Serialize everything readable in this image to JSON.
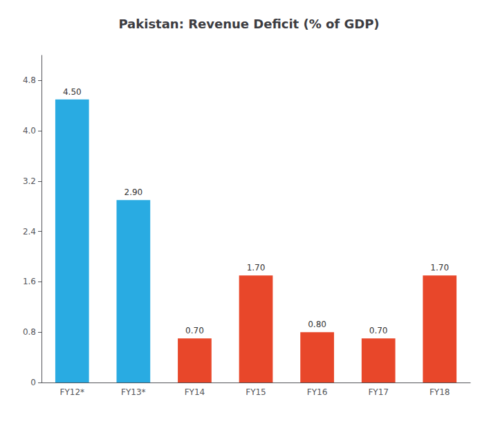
{
  "chart_data": {
    "type": "bar",
    "title": "Pakistan: Revenue Deficit (% of GDP)",
    "categories": [
      "FY12*",
      "FY13*",
      "FY14",
      "FY15",
      "FY16",
      "FY17",
      "FY18"
    ],
    "values": [
      4.5,
      2.9,
      0.7,
      1.7,
      0.8,
      0.7,
      1.7
    ],
    "value_labels": [
      "4.50",
      "2.90",
      "0.70",
      "1.70",
      "0.80",
      "0.70",
      "1.70"
    ],
    "colors": [
      "#29ABE2",
      "#29ABE2",
      "#E8472A",
      "#E8472A",
      "#E8472A",
      "#E8472A",
      "#E8472A"
    ],
    "ylim": [
      0,
      5.2
    ],
    "yticks": [
      0,
      0.8,
      1.6,
      2.4,
      3.2,
      {
        "value": 4.0,
        "label": "4.0"
      },
      4.8
    ],
    "grid": false,
    "data_labels": true
  }
}
